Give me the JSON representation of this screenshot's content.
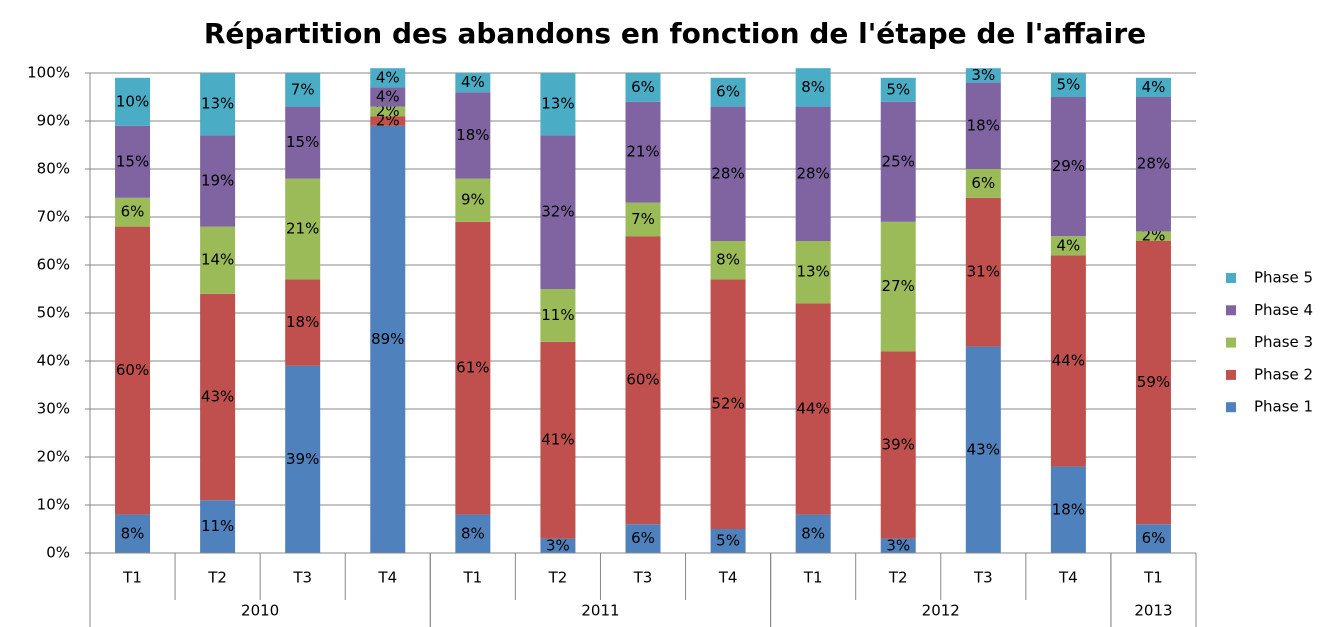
{
  "chart_data": {
    "type": "stacked_bar",
    "title": "Répartition des abandons en fonction de l'étape de l'affaire",
    "categories": [
      "T1",
      "T2",
      "T3",
      "T4",
      "T1",
      "T2",
      "T3",
      "T4",
      "T1",
      "T2",
      "T3",
      "T4",
      "T1"
    ],
    "x_groups": [
      {
        "label": "2010",
        "size": 4
      },
      {
        "label": "2011",
        "size": 4
      },
      {
        "label": "2012",
        "size": 4
      },
      {
        "label": "2013",
        "size": 1
      }
    ],
    "series": [
      {
        "name": "Phase 1",
        "color": "#4f81bd",
        "values": [
          8,
          11,
          39,
          89,
          8,
          3,
          6,
          5,
          8,
          3,
          43,
          18,
          6
        ],
        "value_labels": [
          "8%",
          "11%",
          "39%",
          "89%",
          "8%",
          "3%",
          "6%",
          "5%",
          "8%",
          "3%",
          "43%",
          "18%",
          "6%"
        ]
      },
      {
        "name": "Phase 2",
        "color": "#c0504d",
        "values": [
          60,
          43,
          18,
          2,
          61,
          41,
          60,
          52,
          44,
          39,
          31,
          44,
          59
        ],
        "value_labels": [
          "60%",
          "43%",
          "18%",
          "2%",
          "61%",
          "41%",
          "60%",
          "52%",
          "44%",
          "39%",
          "31%",
          "44%",
          "59%"
        ]
      },
      {
        "name": "Phase 3",
        "color": "#9bbb59",
        "values": [
          6,
          14,
          21,
          2,
          9,
          11,
          7,
          8,
          13,
          27,
          6,
          4,
          2
        ],
        "value_labels": [
          "6%",
          "14%",
          "21%",
          "2%",
          "9%",
          "11%",
          "7%",
          "8%",
          "13%",
          "27%",
          "6%",
          "4%",
          "2%"
        ]
      },
      {
        "name": "Phase 4",
        "color": "#8064a2",
        "values": [
          15,
          19,
          15,
          4,
          18,
          32,
          21,
          28,
          28,
          25,
          18,
          29,
          28
        ],
        "value_labels": [
          "15%",
          "19%",
          "15%",
          "4%",
          "18%",
          "32%",
          "21%",
          "28%",
          "28%",
          "25%",
          "18%",
          "29%",
          "28%"
        ]
      },
      {
        "name": "Phase 5",
        "color": "#4bacc6",
        "values": [
          10,
          13,
          7,
          4,
          4,
          13,
          6,
          6,
          8,
          5,
          3,
          5,
          4
        ],
        "value_labels": [
          "10%",
          "13%",
          "7%",
          "4%",
          "4%",
          "13%",
          "6%",
          "6%",
          "8%",
          "5%",
          "3%",
          "5%",
          "4%"
        ]
      }
    ],
    "ylim": [
      0,
      100
    ],
    "yticks": [
      {
        "value": 0,
        "label": "0%"
      },
      {
        "value": 10,
        "label": "10%"
      },
      {
        "value": 20,
        "label": "20%"
      },
      {
        "value": 30,
        "label": "30%"
      },
      {
        "value": 40,
        "label": "40%"
      },
      {
        "value": 50,
        "label": "50%"
      },
      {
        "value": 60,
        "label": "60%"
      },
      {
        "value": 70,
        "label": "70%"
      },
      {
        "value": 80,
        "label": "80%"
      },
      {
        "value": 90,
        "label": "90%"
      },
      {
        "value": 100,
        "label": "100%"
      }
    ],
    "grid": true,
    "legend": "right"
  }
}
